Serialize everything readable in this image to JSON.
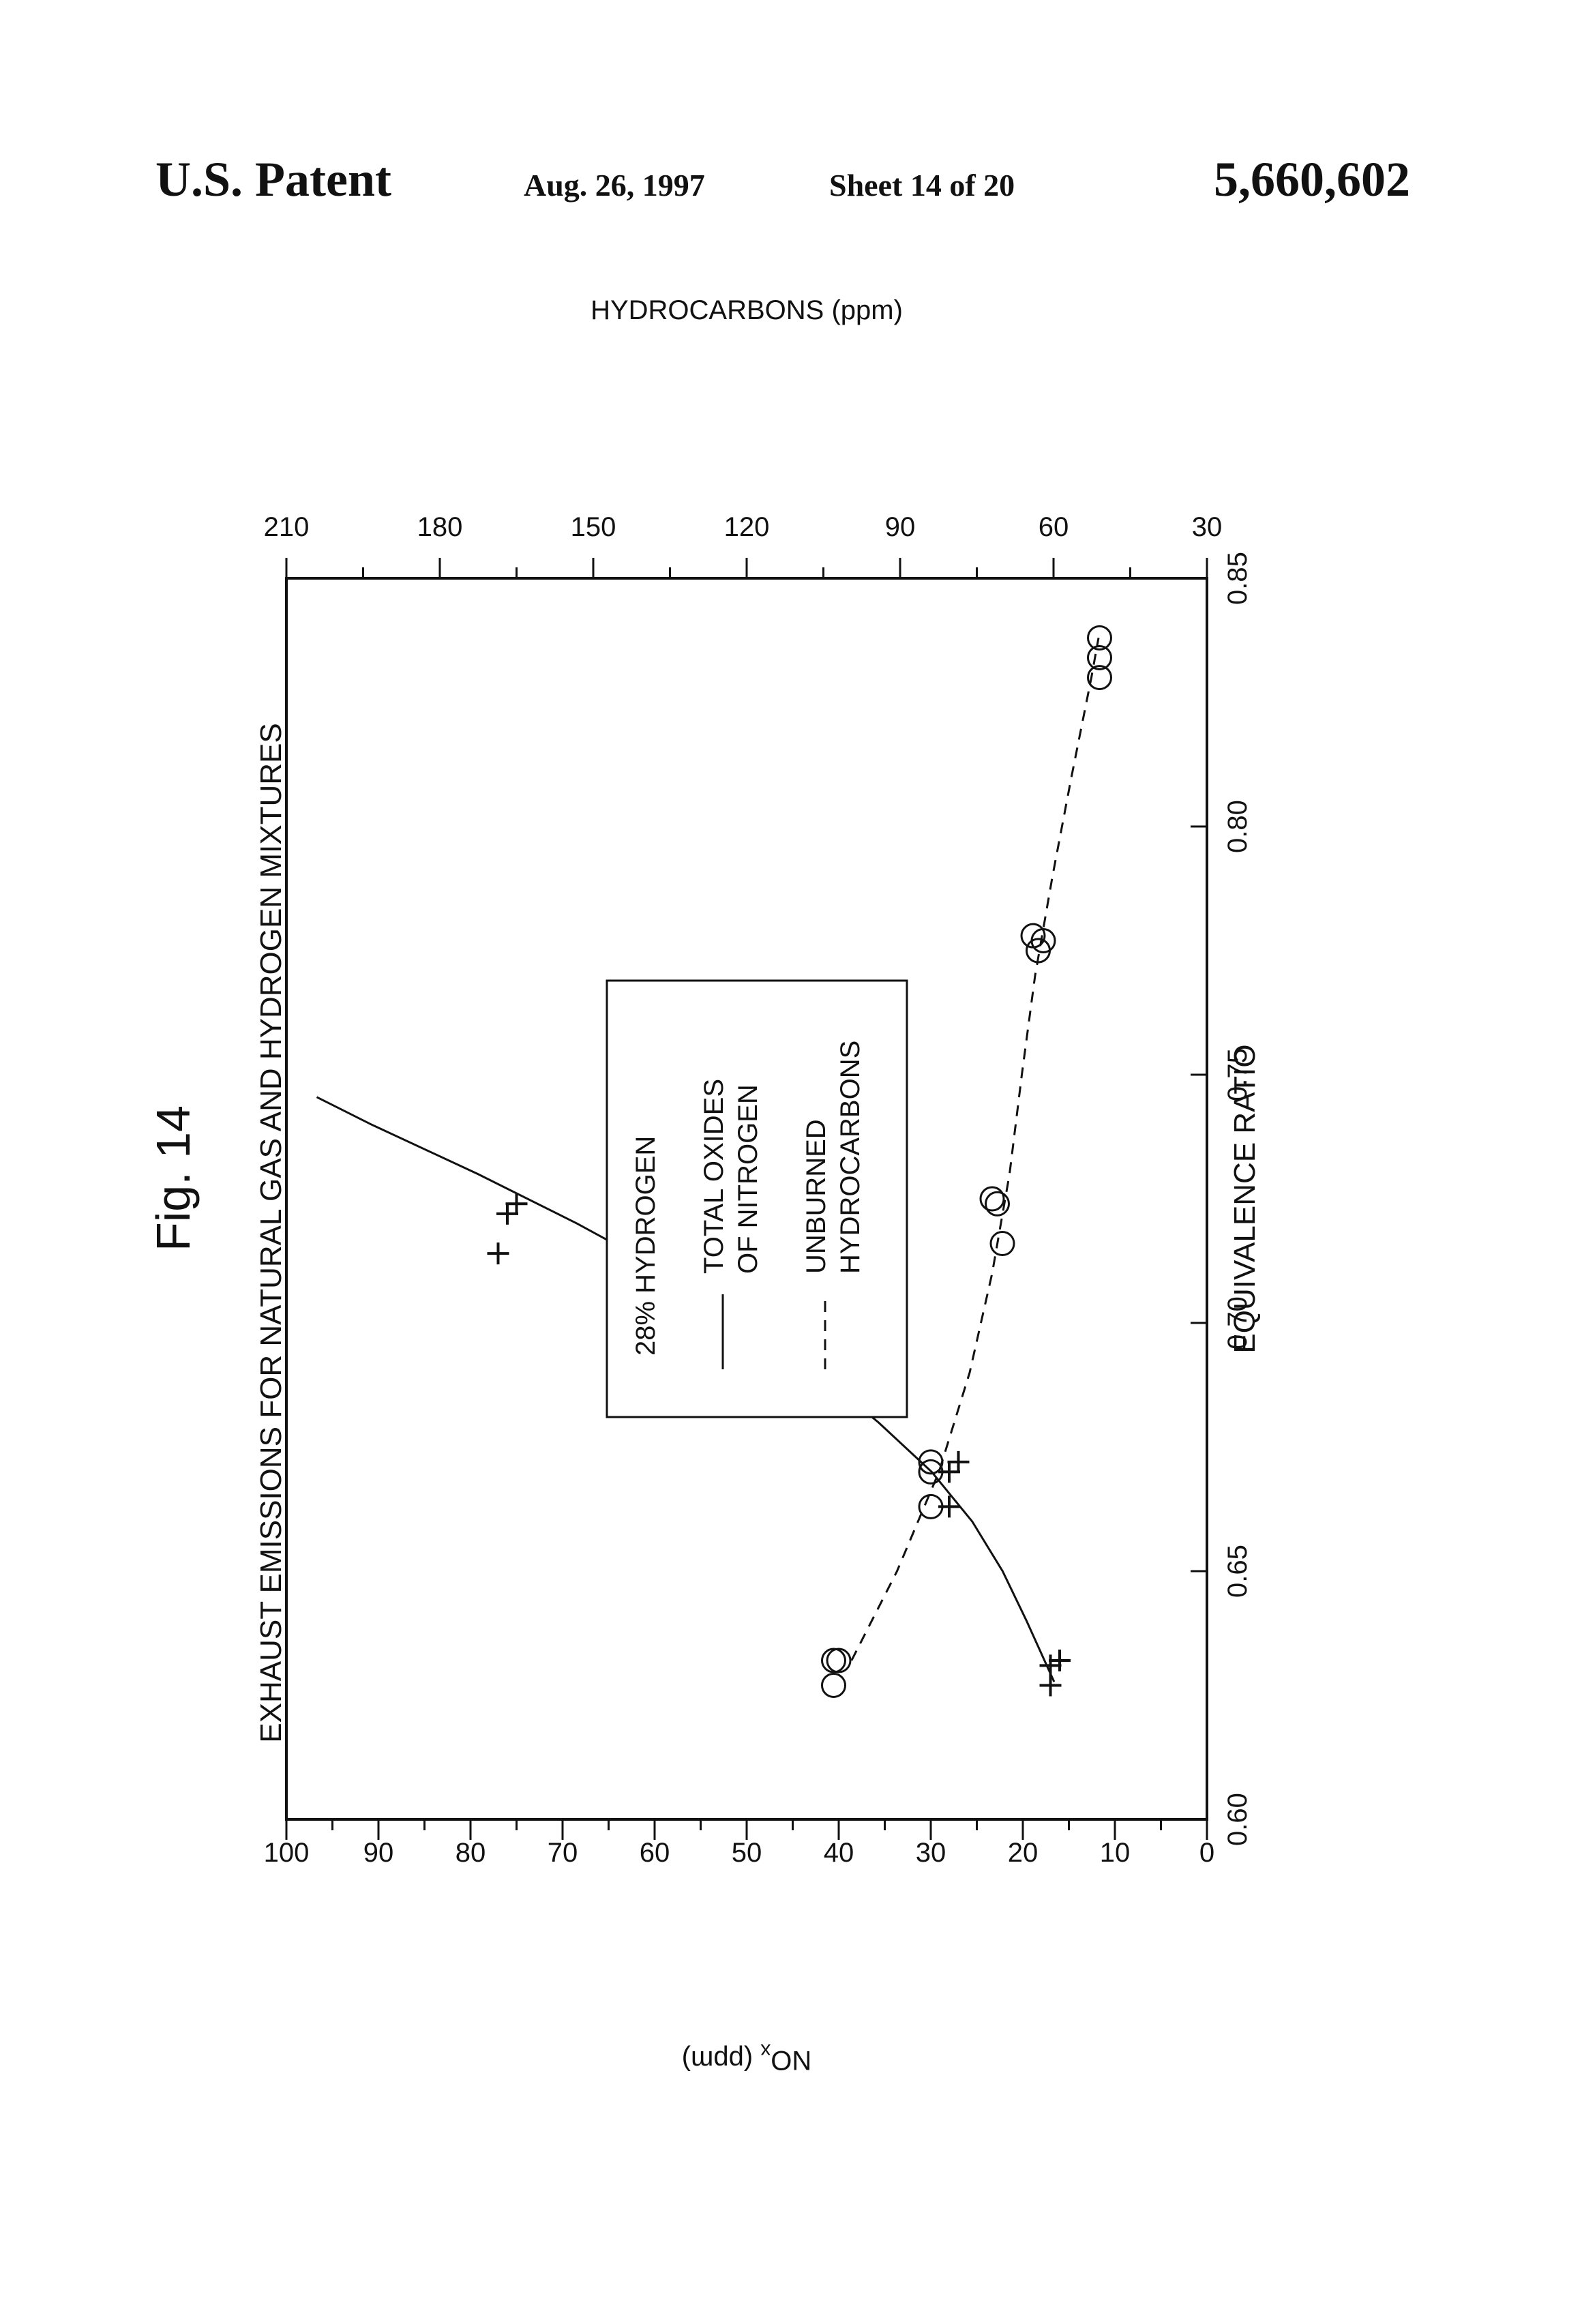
{
  "header": {
    "patent_label": "U.S. Patent",
    "date": "Aug. 26, 1997",
    "sheet": "Sheet 14 of 20",
    "patent_number": "5,660,602"
  },
  "figure_label": "Fig. 14",
  "chart_data": {
    "type": "scatter",
    "title": "EXHAUST EMISSIONS FOR NATURAL GAS AND HYDROGEN MIXTURES",
    "xlabel": "EQUIVALENCE RATIO",
    "ylabel_left": "NOx (ppm)",
    "ylabel_right": "HYDROCARBONS (ppm)",
    "xlim": [
      0.6,
      0.85
    ],
    "x_ticks": [
      "0.60",
      "0.65",
      "0.70",
      "0.75",
      "0.80",
      "0.85"
    ],
    "ylim_left": [
      0,
      100
    ],
    "y_ticks_left": [
      "100",
      "90",
      "80",
      "70",
      "60",
      "50",
      "40",
      "30",
      "20",
      "10",
      "0"
    ],
    "ylim_right": [
      30,
      210
    ],
    "y_ticks_right": [
      "210",
      "180",
      "150",
      "120",
      "90",
      "60",
      "30"
    ],
    "orientation": "rotated 90 degrees counter-clockwise",
    "legend": {
      "title": "28% HYDROGEN",
      "entries": [
        {
          "line1": "TOTAL OXIDES",
          "line2": "OF NITROGEN",
          "style": "solid"
        },
        {
          "line1": "UNBURNED",
          "line2": "HYDROCARBONS",
          "style": "dashed"
        }
      ]
    },
    "series": [
      {
        "name": "TOTAL OXIDES OF NITROGEN",
        "marker": "plus",
        "axis": "left",
        "points": [
          [
            0.627,
            17
          ],
          [
            0.631,
            17
          ],
          [
            0.632,
            16
          ],
          [
            0.663,
            28
          ],
          [
            0.67,
            28
          ],
          [
            0.672,
            27
          ],
          [
            0.714,
            77
          ],
          [
            0.722,
            76
          ],
          [
            0.724,
            75
          ]
        ],
        "fit": [
          [
            0.6277,
            16.6
          ],
          [
            0.64,
            19.6
          ],
          [
            0.65,
            22.2
          ],
          [
            0.66,
            25.5
          ],
          [
            0.67,
            29.9
          ],
          [
            0.68,
            35.7
          ],
          [
            0.69,
            42.3
          ],
          [
            0.7,
            49.8
          ],
          [
            0.71,
            58.5
          ],
          [
            0.72,
            68.4
          ],
          [
            0.73,
            79.2
          ],
          [
            0.74,
            90.8
          ],
          [
            0.7455,
            96.7
          ]
        ]
      },
      {
        "name": "UNBURNED HYDROCARBONS",
        "marker": "circle",
        "axis": "right",
        "points": [
          [
            0.627,
            103
          ],
          [
            0.632,
            102
          ],
          [
            0.632,
            103
          ],
          [
            0.663,
            84
          ],
          [
            0.67,
            84
          ],
          [
            0.672,
            84
          ],
          [
            0.716,
            70
          ],
          [
            0.724,
            71
          ],
          [
            0.725,
            72
          ],
          [
            0.775,
            63
          ],
          [
            0.777,
            62
          ],
          [
            0.778,
            64
          ],
          [
            0.83,
            51
          ],
          [
            0.834,
            51
          ],
          [
            0.838,
            51
          ]
        ],
        "fit": [
          [
            0.632,
            99.5
          ],
          [
            0.65,
            90.6
          ],
          [
            0.67,
            82.4
          ],
          [
            0.69,
            76.4
          ],
          [
            0.71,
            72.0
          ],
          [
            0.73,
            68.6
          ],
          [
            0.75,
            66.2
          ],
          [
            0.77,
            63.6
          ],
          [
            0.79,
            60.2
          ],
          [
            0.81,
            56.5
          ],
          [
            0.83,
            52.6
          ],
          [
            0.838,
            51.2
          ]
        ]
      }
    ]
  }
}
